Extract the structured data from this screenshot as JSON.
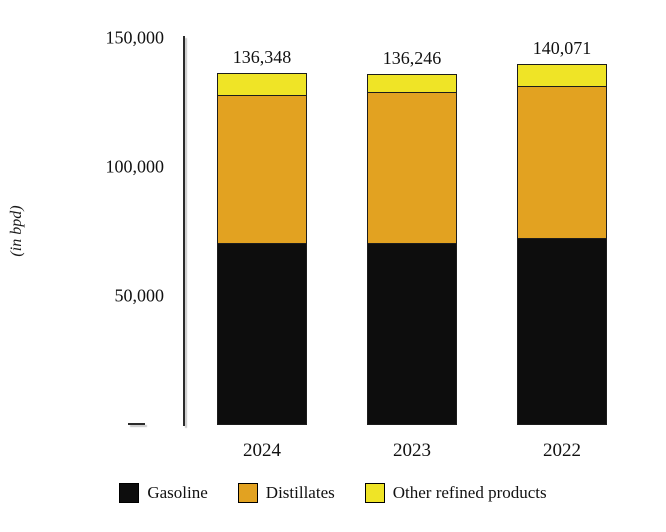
{
  "chart_data": {
    "type": "bar",
    "stacked": true,
    "title": "",
    "ylabel": "(in bpd)",
    "ymax": 150000,
    "grid": false,
    "legend_position": "bottom",
    "yticks": [
      {
        "value": 150000,
        "label": "150,000"
      },
      {
        "value": 100000,
        "label": "100,000"
      },
      {
        "value": 50000,
        "label": "50,000"
      }
    ],
    "categories": [
      "2024",
      "2023",
      "2022"
    ],
    "totals": [
      {
        "value": 136348,
        "label": "136,348"
      },
      {
        "value": 136246,
        "label": "136,246"
      },
      {
        "value": 140071,
        "label": "140,071"
      }
    ],
    "series": [
      {
        "name": "Gasoline",
        "color": "#0d0d0d",
        "values": [
          70000,
          70000,
          72000
        ]
      },
      {
        "name": "Distillates",
        "color": "#e2a221",
        "values": [
          57500,
          58500,
          59000
        ]
      },
      {
        "name": "Other refined products",
        "color": "#efe426",
        "values": [
          8848,
          7746,
          9071
        ]
      }
    ]
  }
}
